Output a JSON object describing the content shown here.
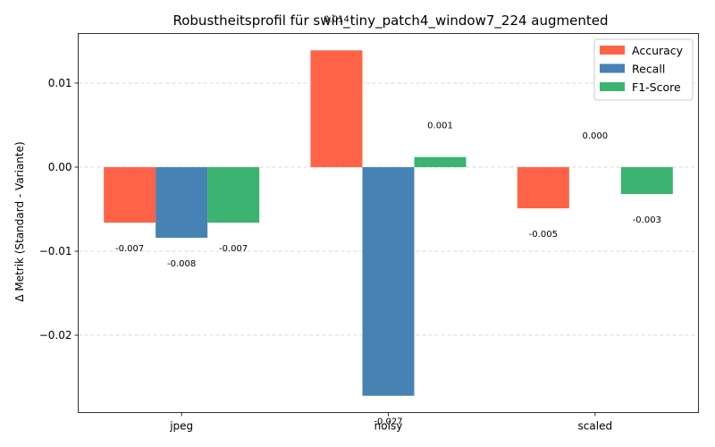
{
  "chart_data": {
    "type": "bar",
    "title": "Robustheitsprofil für swin_tiny_patch4_window7_224 augmented",
    "xlabel": "",
    "ylabel": "Δ Metrik (Standard - Variante)",
    "categories": [
      "jpeg",
      "noisy",
      "scaled"
    ],
    "series": [
      {
        "name": "Accuracy",
        "color": "#ff6347",
        "values": [
          -0.0066,
          0.0139,
          -0.0049
        ],
        "labels": [
          "-0.007",
          "0.014",
          "-0.005"
        ]
      },
      {
        "name": "Recall",
        "color": "#4682b4",
        "values": [
          -0.0084,
          -0.0272,
          0.0
        ],
        "labels": [
          "-0.008",
          "-0.027",
          "0.000"
        ]
      },
      {
        "name": "F1-Score",
        "color": "#3cb371",
        "values": [
          -0.0066,
          0.0012,
          -0.0032
        ],
        "labels": [
          "-0.007",
          "0.001",
          "-0.003"
        ]
      }
    ],
    "ylim": [
      -0.0292,
      0.0159
    ],
    "yticks": [
      -0.02,
      -0.01,
      0.0,
      0.01
    ],
    "ytick_labels": [
      "−0.02",
      "−0.01",
      "0.00",
      "0.01"
    ],
    "grid": "y-dashed",
    "legend_position": "top-right"
  }
}
